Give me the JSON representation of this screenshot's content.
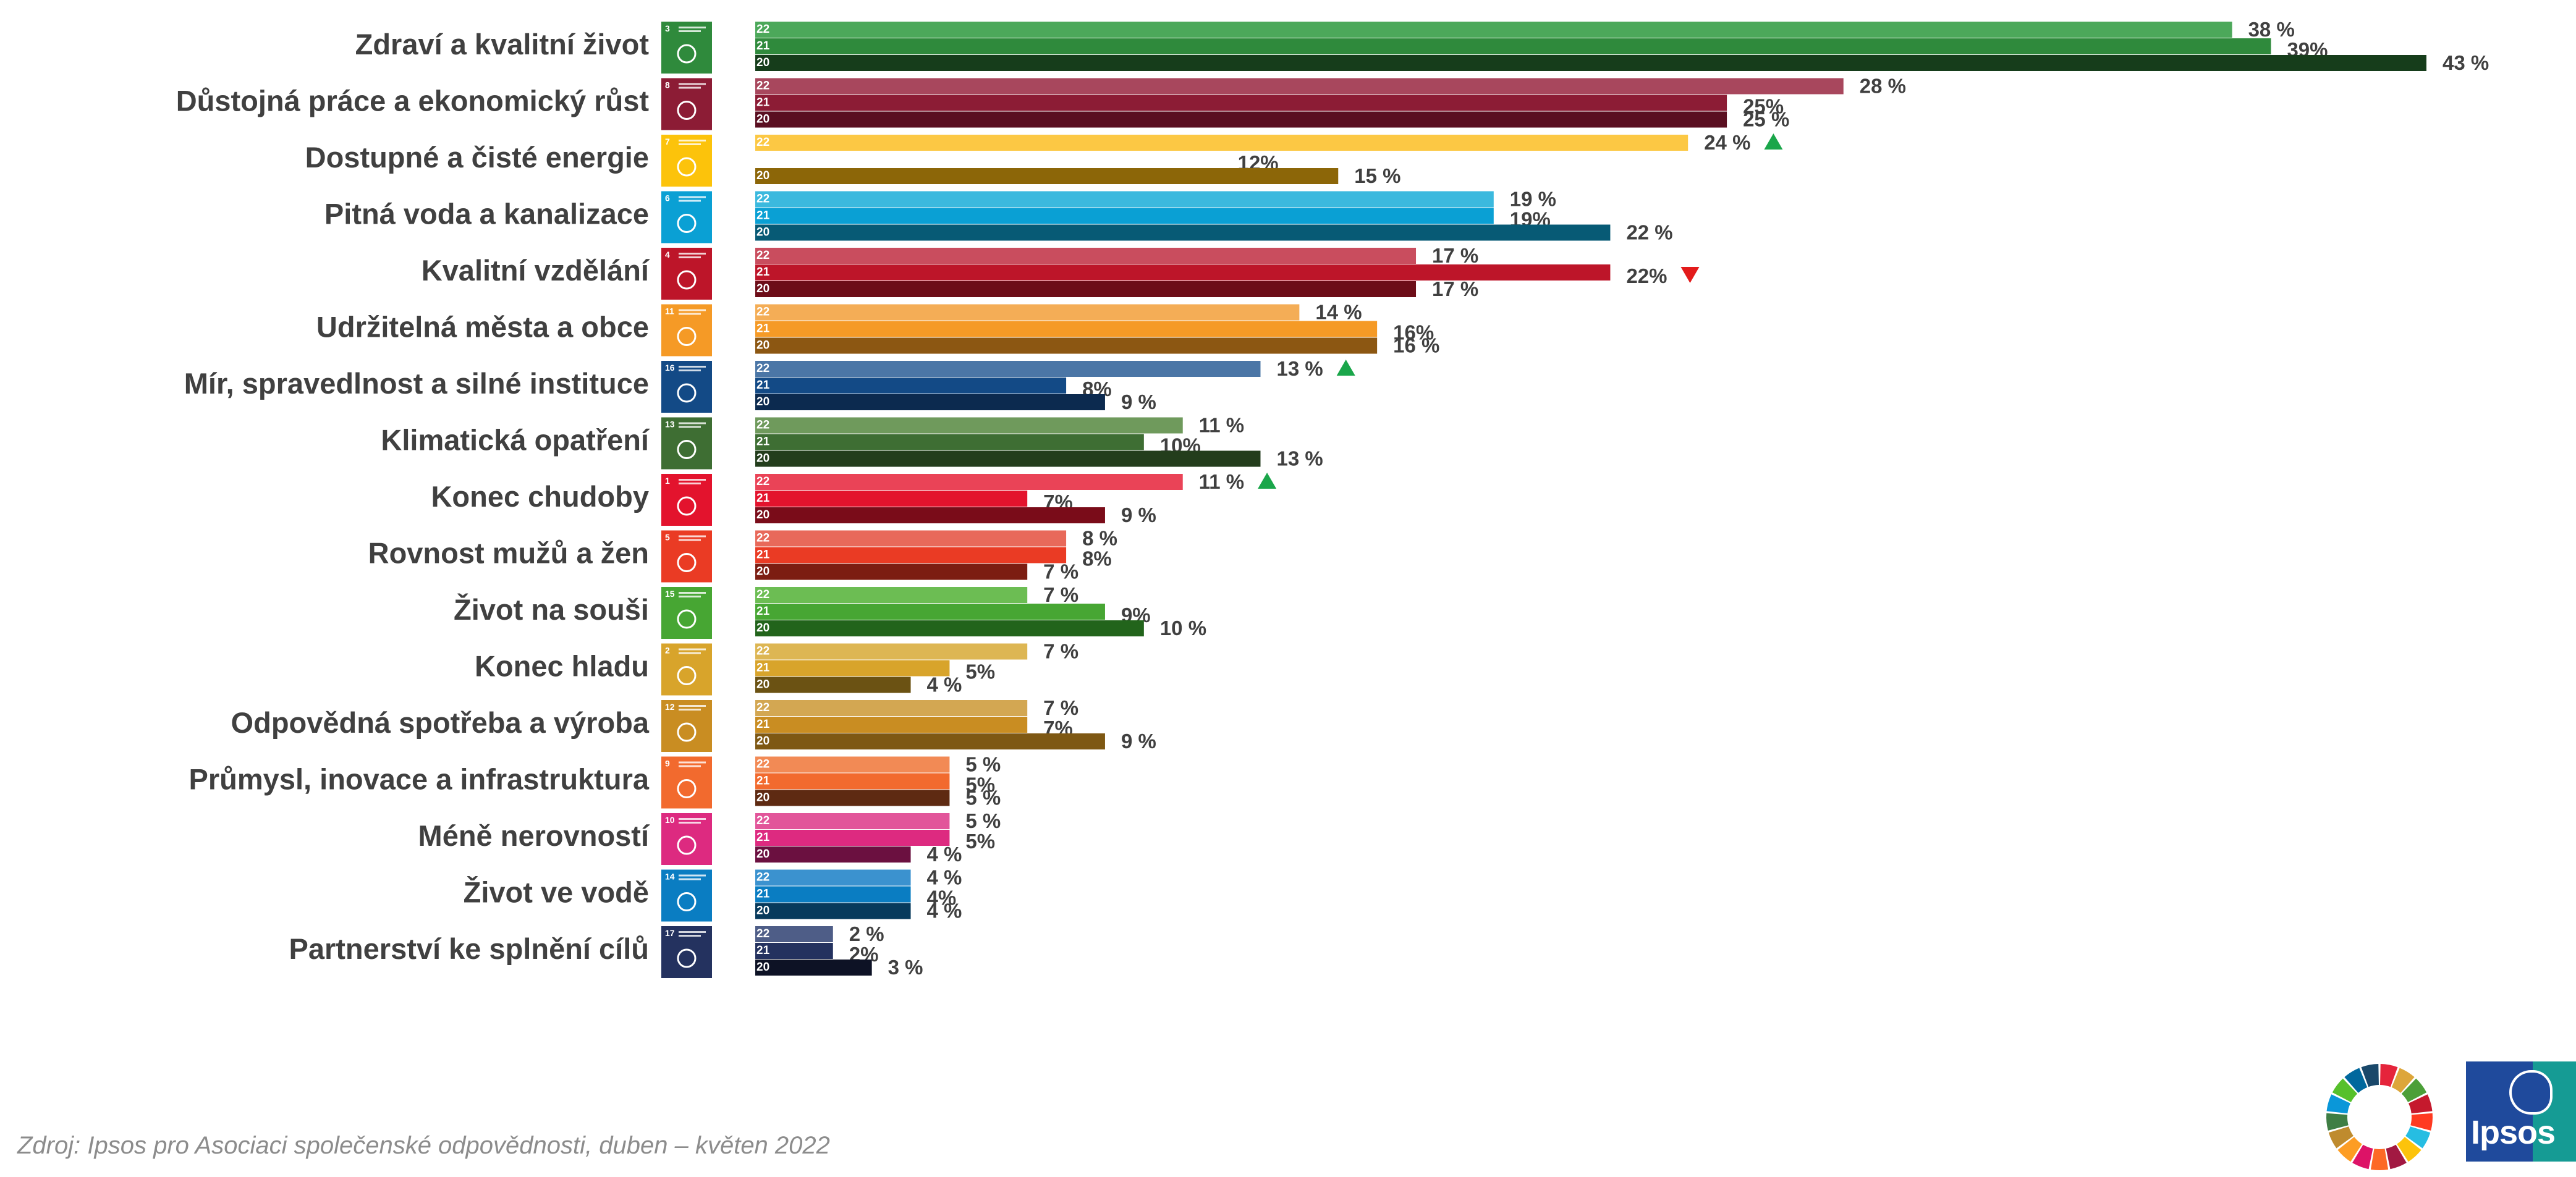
{
  "chart_data": {
    "type": "bar",
    "orientation": "horizontal",
    "years": [
      "2022",
      "2021",
      "2020"
    ],
    "year_tags": [
      "22",
      "21",
      "20"
    ],
    "categories": [
      {
        "label": "Zdraví a kvalitní život",
        "icon": "sdg-3-good-health-icon",
        "sdg": "3",
        "colors": [
          "#4ca85a",
          "#2f8a3c",
          "#163d1b"
        ],
        "values": [
          38,
          39,
          43
        ],
        "value_labels": [
          "38 %",
          "39%",
          "43 %"
        ],
        "trend": ""
      },
      {
        "label": "Důstojná práce a ekonomický růst",
        "icon": "sdg-8-decent-work-icon",
        "sdg": "8",
        "colors": [
          "#a8475d",
          "#8c1c35",
          "#5a0f21"
        ],
        "values": [
          28,
          25,
          25
        ],
        "value_labels": [
          "28 %",
          "25%",
          "25 %"
        ],
        "trend": ""
      },
      {
        "label": "Dostupné a čisté energie",
        "icon": "sdg-7-clean-energy-icon",
        "sdg": "7",
        "colors": [
          "#fcc844",
          "#ffffff",
          "#8c6608"
        ],
        "values": [
          24,
          12,
          15
        ],
        "value_labels": [
          "24 %",
          "12%",
          "15 %"
        ],
        "trend": "up"
      },
      {
        "label": "Pitná voda a kanalizace",
        "icon": "sdg-6-clean-water-icon",
        "sdg": "6",
        "colors": [
          "#3bb9de",
          "#0aa0d4",
          "#075a75"
        ],
        "values": [
          19,
          19,
          22
        ],
        "value_labels": [
          "19 %",
          "19%",
          "22 %"
        ],
        "trend": ""
      },
      {
        "label": "Kvalitní vzdělání",
        "icon": "sdg-4-quality-education-icon",
        "sdg": "4",
        "colors": [
          "#c94d5e",
          "#bd1529",
          "#6d0d18"
        ],
        "values": [
          17,
          22,
          17
        ],
        "value_labels": [
          "17 %",
          "22%",
          "17 %"
        ],
        "trend": "down"
      },
      {
        "label": "Udržitelná města a obce",
        "icon": "sdg-11-sustainable-cities-icon",
        "sdg": "11",
        "colors": [
          "#f4ad56",
          "#f59a26",
          "#8c5712"
        ],
        "values": [
          14,
          16,
          16
        ],
        "value_labels": [
          "14 %",
          "16%",
          "16 %"
        ],
        "trend": ""
      },
      {
        "label": "Mír, spravedlnost a silné instituce",
        "icon": "sdg-16-peace-justice-icon",
        "sdg": "16",
        "colors": [
          "#4b76a6",
          "#134a86",
          "#0c2a4f"
        ],
        "values": [
          13,
          8,
          9
        ],
        "value_labels": [
          "13 %",
          "8%",
          "9 %"
        ],
        "trend": "up"
      },
      {
        "label": "Klimatická opatření",
        "icon": "sdg-13-climate-action-icon",
        "sdg": "13",
        "colors": [
          "#6f9a5c",
          "#3e6e33",
          "#233d1c"
        ],
        "values": [
          11,
          10,
          13
        ],
        "value_labels": [
          "11 %",
          "10%",
          "13 %"
        ],
        "trend": ""
      },
      {
        "label": "Konec chudoby",
        "icon": "sdg-1-no-poverty-icon",
        "sdg": "1",
        "colors": [
          "#ea4357",
          "#e3132d",
          "#7a0c19"
        ],
        "values": [
          11,
          7,
          9
        ],
        "value_labels": [
          "11 %",
          "7%",
          "9 %"
        ],
        "trend": "up"
      },
      {
        "label": "Rovnost mužů a žen",
        "icon": "sdg-5-gender-equality-icon",
        "sdg": "5",
        "colors": [
          "#e8695a",
          "#ea3b24",
          "#7c1d12"
        ],
        "values": [
          8,
          8,
          7
        ],
        "value_labels": [
          "8 %",
          "8%",
          "7 %"
        ],
        "trend": ""
      },
      {
        "label": "Život na souši",
        "icon": "sdg-15-life-on-land-icon",
        "sdg": "15",
        "colors": [
          "#6cbd53",
          "#47a633",
          "#22641b"
        ],
        "values": [
          7,
          9,
          10
        ],
        "value_labels": [
          "7 %",
          "9%",
          "10 %"
        ],
        "trend": ""
      },
      {
        "label": "Konec hladu",
        "icon": "sdg-2-zero-hunger-icon",
        "sdg": "2",
        "colors": [
          "#ddb653",
          "#d8a42b",
          "#6b5213"
        ],
        "values": [
          7,
          5,
          4
        ],
        "value_labels": [
          "7 %",
          "5%",
          "4 %"
        ],
        "trend": ""
      },
      {
        "label": "Odpovědná spotřeba a výroba",
        "icon": "sdg-12-responsible-consumption-icon",
        "sdg": "12",
        "colors": [
          "#d3a752",
          "#c98d22",
          "#7e5813"
        ],
        "values": [
          7,
          7,
          9
        ],
        "value_labels": [
          "7 %",
          "7%",
          "9 %"
        ],
        "trend": ""
      },
      {
        "label": "Průmysl, inovace a infrastruktura",
        "icon": "sdg-9-industry-innovation-icon",
        "sdg": "9",
        "colors": [
          "#f28a55",
          "#f26a2e",
          "#5e2a12"
        ],
        "values": [
          5,
          5,
          5
        ],
        "value_labels": [
          "5 %",
          "5%",
          "5 %"
        ],
        "trend": ""
      },
      {
        "label": "Méně nerovností",
        "icon": "sdg-10-reduced-inequalities-icon",
        "sdg": "10",
        "colors": [
          "#e2559a",
          "#dd2a80",
          "#6b1040"
        ],
        "values": [
          5,
          5,
          4
        ],
        "value_labels": [
          "5 %",
          "5%",
          "4 %"
        ],
        "trend": ""
      },
      {
        "label": "Život ve vodě",
        "icon": "sdg-14-life-below-water-icon",
        "sdg": "14",
        "colors": [
          "#3b92cf",
          "#0a7dc2",
          "#073a5c"
        ],
        "values": [
          4,
          4,
          4
        ],
        "value_labels": [
          "4 %",
          "4%",
          "4 %"
        ],
        "trend": ""
      },
      {
        "label": "Partnerství ke splnění cílů",
        "icon": "sdg-17-partnerships-icon",
        "sdg": "17",
        "colors": [
          "#4e5d87",
          "#24325f",
          "#0d1225"
        ],
        "values": [
          2,
          2,
          3
        ],
        "value_labels": [
          "2 %",
          "2%",
          "3 %"
        ],
        "trend": ""
      }
    ],
    "trend_colors": {
      "up": "#1aa64a",
      "down": "#e31b1b"
    },
    "xlim": [
      0,
      43
    ],
    "legend": "none",
    "grid": false
  },
  "footer": {
    "source": "Zdroj: Ipsos pro Asociaci společenské odpovědnosti, duben – květen 2022",
    "sdg_logo_icon": "sdg-wheel-icon",
    "brand_logo": {
      "icon": "ipsos-logo-icon",
      "text": "Ipsos"
    }
  }
}
